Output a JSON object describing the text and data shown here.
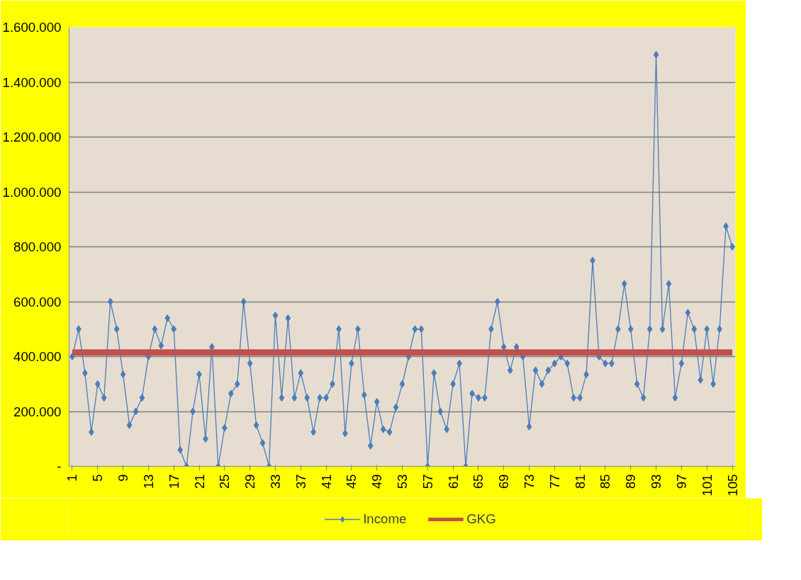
{
  "chart_data": {
    "type": "line",
    "categories": [
      "1",
      null,
      null,
      null,
      "5",
      null,
      null,
      null,
      "9",
      null,
      null,
      null,
      "13",
      null,
      null,
      null,
      "17",
      null,
      null,
      null,
      "21",
      null,
      null,
      null,
      "25",
      null,
      null,
      null,
      "29",
      null,
      null,
      null,
      "33",
      null,
      null,
      null,
      "37",
      null,
      null,
      null,
      "41",
      null,
      null,
      null,
      "45",
      null,
      null,
      null,
      "49",
      null,
      null,
      null,
      "53",
      null,
      null,
      null,
      "57",
      null,
      null,
      null,
      "61",
      null,
      null,
      null,
      "65",
      null,
      null,
      null,
      "69",
      null,
      null,
      null,
      "73",
      null,
      null,
      null,
      "77",
      null,
      null,
      null,
      "81",
      null,
      null,
      null,
      "85",
      null,
      null,
      null,
      "89",
      null,
      null,
      null,
      "93",
      null,
      null,
      null,
      "97",
      null,
      null,
      null,
      "101",
      null,
      null,
      null,
      "105"
    ],
    "series": [
      {
        "name": "Income",
        "color": "#4a7ebb",
        "marker": "diamond",
        "values": [
          400000,
          500000,
          340000,
          125000,
          300000,
          250000,
          600000,
          500000,
          335000,
          150000,
          200000,
          250000,
          400000,
          500000,
          440000,
          540000,
          500000,
          60000,
          0,
          200000,
          335000,
          100000,
          435000,
          0,
          140000,
          265000,
          300000,
          600000,
          375000,
          150000,
          85000,
          0,
          550000,
          250000,
          540000,
          250000,
          340000,
          250000,
          125000,
          250000,
          250000,
          300000,
          500000,
          120000,
          375000,
          500000,
          260000,
          75000,
          235000,
          135000,
          125000,
          215000,
          300000,
          400000,
          500000,
          500000,
          0,
          340000,
          200000,
          135000,
          300000,
          375000,
          0,
          265000,
          250000,
          250000,
          500000,
          600000,
          435000,
          350000,
          435000,
          400000,
          145000,
          350000,
          300000,
          350000,
          375000,
          400000,
          375000,
          250000,
          250000,
          335000,
          750000,
          400000,
          375000,
          375000,
          500000,
          665000,
          500000,
          300000,
          250000,
          500000,
          1500000,
          500000,
          665000,
          250000,
          375000,
          560000,
          500000,
          315000,
          500000,
          300000,
          500000,
          875000,
          800000
        ]
      },
      {
        "name": "GKG",
        "color": "#c0504d",
        "marker": "none",
        "values": [
          415000,
          415000,
          415000,
          415000,
          415000,
          415000,
          415000,
          415000,
          415000,
          415000,
          415000,
          415000,
          415000,
          415000,
          415000,
          415000,
          415000,
          415000,
          415000,
          415000,
          415000,
          415000,
          415000,
          415000,
          415000,
          415000,
          415000,
          415000,
          415000,
          415000,
          415000,
          415000,
          415000,
          415000,
          415000,
          415000,
          415000,
          415000,
          415000,
          415000,
          415000,
          415000,
          415000,
          415000,
          415000,
          415000,
          415000,
          415000,
          415000,
          415000,
          415000,
          415000,
          415000,
          415000,
          415000,
          415000,
          415000,
          415000,
          415000,
          415000,
          415000,
          415000,
          415000,
          415000,
          415000,
          415000,
          415000,
          415000,
          415000,
          415000,
          415000,
          415000,
          415000,
          415000,
          415000,
          415000,
          415000,
          415000,
          415000,
          415000,
          415000,
          415000,
          415000,
          415000,
          415000,
          415000,
          415000,
          415000,
          415000,
          415000,
          415000,
          415000,
          415000,
          415000,
          415000,
          415000,
          415000,
          415000,
          415000,
          415000,
          415000,
          415000,
          415000,
          415000,
          415000
        ]
      }
    ],
    "ylim": [
      0,
      1600000
    ],
    "yticks": [
      {
        "value": 0,
        "label": "-"
      },
      {
        "value": 200000,
        "label": "200.000"
      },
      {
        "value": 400000,
        "label": "400.000"
      },
      {
        "value": 600000,
        "label": "600.000"
      },
      {
        "value": 800000,
        "label": "800.000"
      },
      {
        "value": 1000000,
        "label": "1.000.000"
      },
      {
        "value": 1200000,
        "label": "1.200.000"
      },
      {
        "value": 1400000,
        "label": "1.400.000"
      },
      {
        "value": 1600000,
        "label": "1.600.000"
      }
    ],
    "grid": "y",
    "legend": "bottom"
  }
}
